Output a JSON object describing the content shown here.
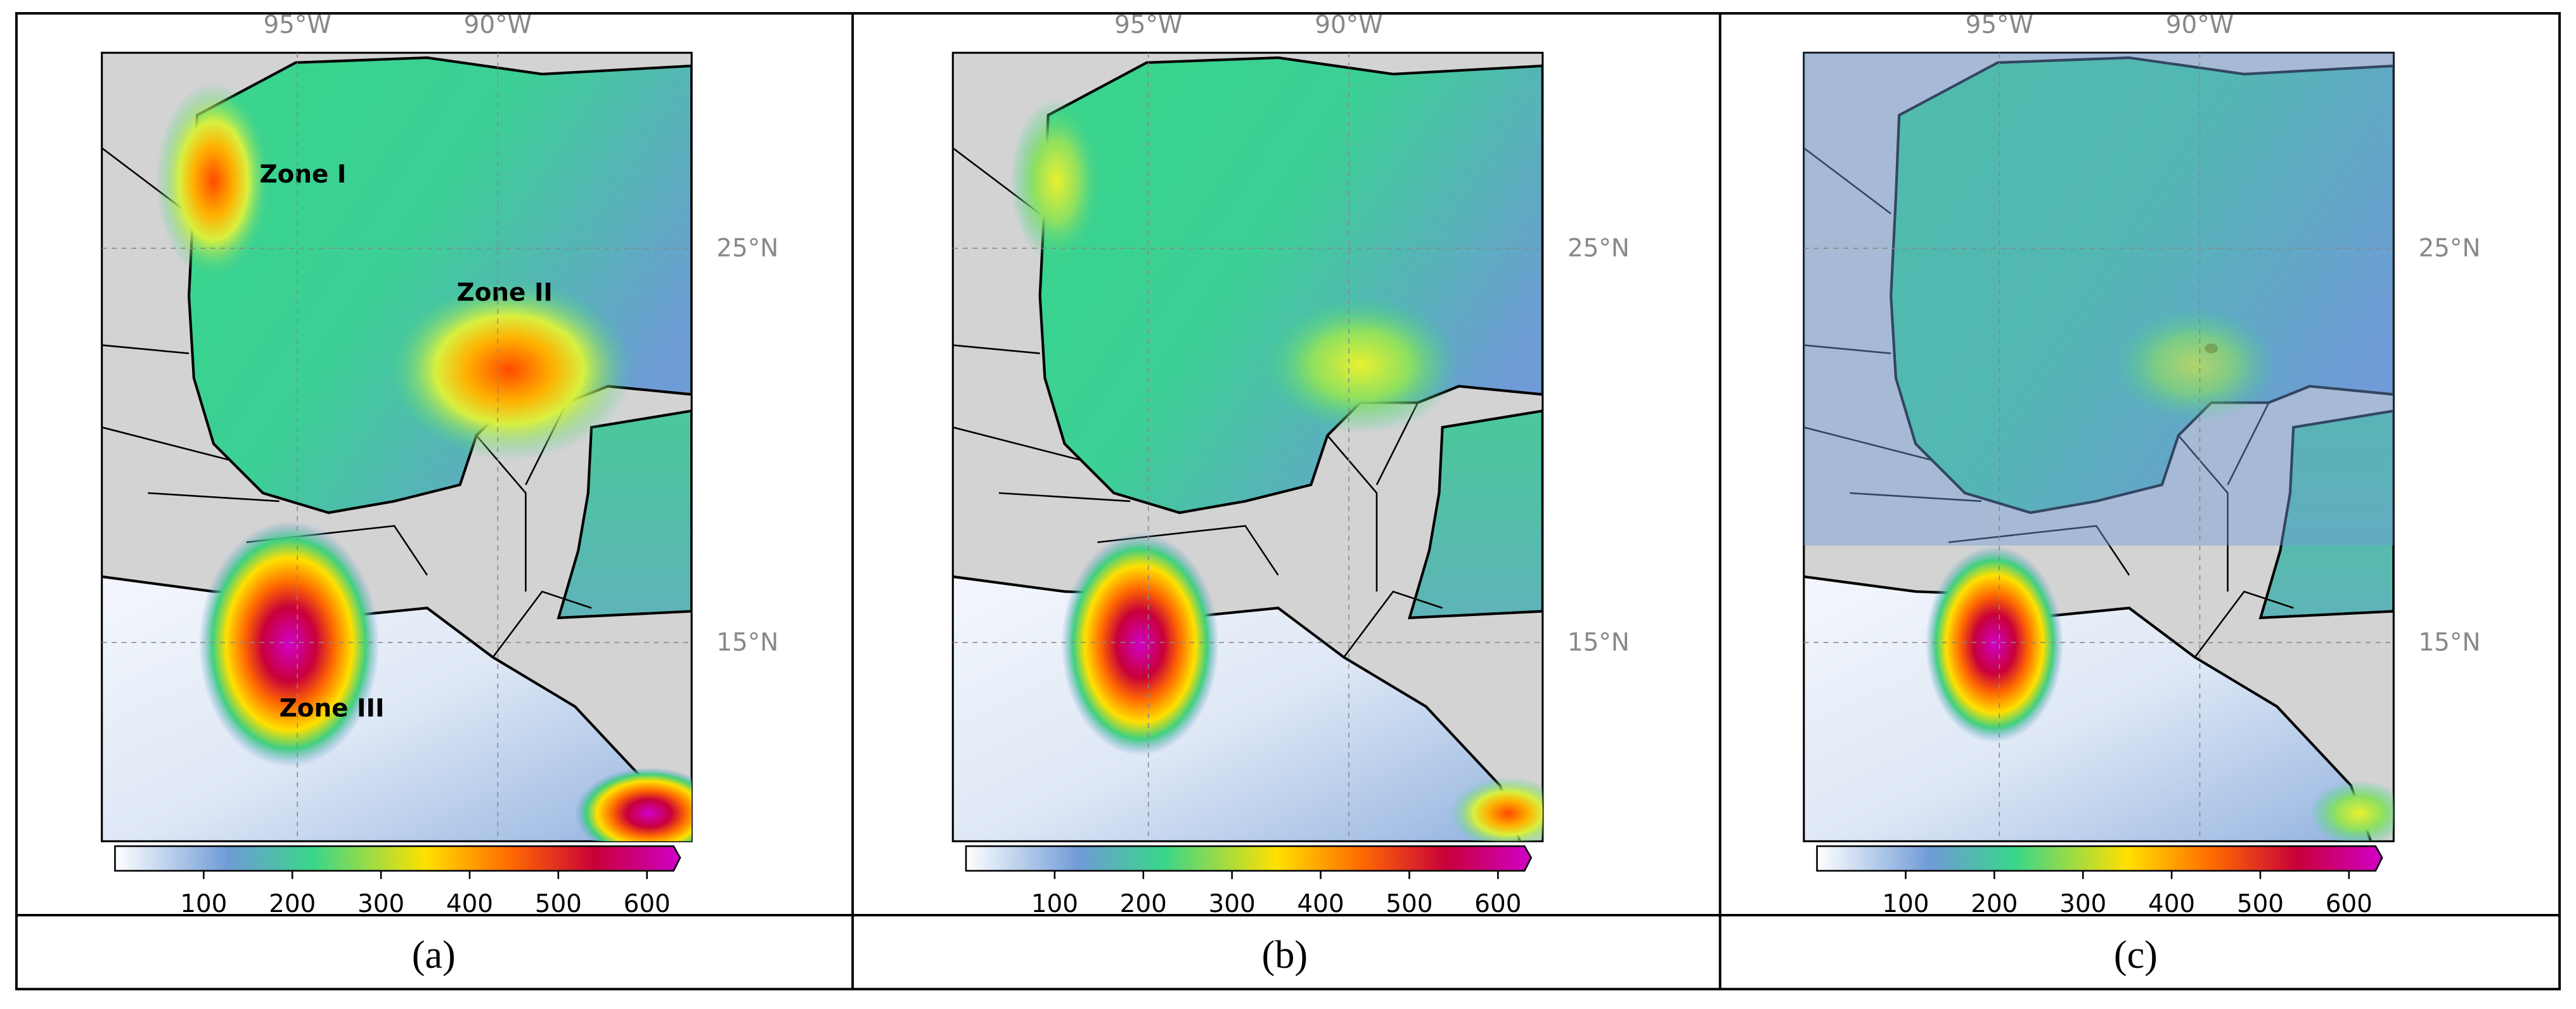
{
  "panels": [
    {
      "caption": "(a)",
      "zones": [
        "Zone I",
        "Zone II",
        "Zone III"
      ]
    },
    {
      "caption": "(b)"
    },
    {
      "caption": "(c)"
    }
  ],
  "longitude_labels": [
    "95°W",
    "90°W"
  ],
  "latitude_labels": [
    "25°N",
    "15°N"
  ],
  "colorbar": {
    "range": [
      0,
      630
    ],
    "ticks": [
      100,
      200,
      300,
      400,
      500,
      600
    ]
  }
}
